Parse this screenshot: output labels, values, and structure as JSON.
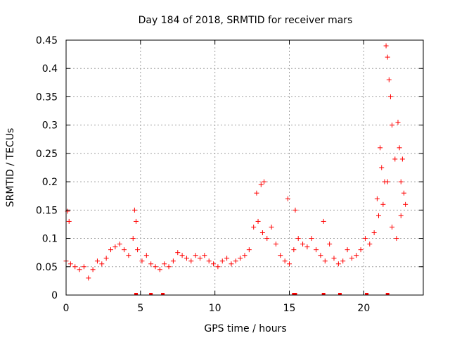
{
  "chart_data": {
    "type": "scatter",
    "title": "Day 184 of 2018, SRMTID for receiver mars",
    "xlabel": "GPS time / hours",
    "ylabel": "SRMTID / TECUs",
    "xlim": [
      0,
      24
    ],
    "ylim": [
      0,
      0.45
    ],
    "x_ticks": [
      "0",
      "5",
      "10",
      "15",
      "20"
    ],
    "y_ticks": [
      "0",
      "0.05",
      "0.1",
      "0.15",
      "0.2",
      "0.25",
      "0.3",
      "0.35",
      "0.4",
      "0.45"
    ],
    "grid": true,
    "marker": "+",
    "color": "#ff0000",
    "series": [
      {
        "name": "SRMTID",
        "x": [
          0.0,
          0.3,
          0.6,
          0.9,
          1.2,
          1.5,
          1.8,
          2.1,
          2.4,
          2.7,
          3.0,
          3.3,
          3.6,
          3.9,
          4.2,
          4.5,
          4.8,
          5.1,
          5.4,
          5.7,
          6.0,
          6.3,
          6.6,
          6.9,
          7.2,
          7.5,
          7.8,
          8.1,
          8.4,
          8.7,
          9.0,
          9.3,
          9.6,
          9.9,
          10.2,
          10.5,
          10.8,
          11.1,
          11.4,
          11.7,
          12.0,
          12.3,
          12.6,
          12.9,
          13.2,
          13.5,
          13.8,
          14.1,
          14.4,
          14.7,
          15.0,
          15.3,
          15.6,
          15.9,
          16.2,
          16.5,
          16.8,
          17.1,
          17.4,
          17.7,
          18.0,
          18.3,
          18.6,
          18.9,
          19.2,
          19.5,
          19.8,
          20.1,
          20.4,
          20.7,
          21.0,
          21.3,
          21.6,
          21.9,
          22.2,
          22.5,
          22.8,
          0.1,
          0.2,
          4.6,
          4.7,
          12.8,
          13.1,
          13.3,
          14.9,
          15.4,
          17.3,
          20.9,
          21.1,
          21.2,
          21.4,
          21.5,
          21.6,
          21.7,
          21.8,
          21.9,
          22.1,
          22.3,
          22.4,
          22.5,
          22.6,
          22.7
        ],
        "y": [
          0.06,
          0.055,
          0.05,
          0.045,
          0.05,
          0.03,
          0.045,
          0.06,
          0.055,
          0.065,
          0.08,
          0.085,
          0.09,
          0.08,
          0.07,
          0.1,
          0.08,
          0.06,
          0.07,
          0.055,
          0.05,
          0.045,
          0.055,
          0.05,
          0.06,
          0.075,
          0.07,
          0.065,
          0.06,
          0.07,
          0.065,
          0.07,
          0.06,
          0.055,
          0.05,
          0.06,
          0.065,
          0.055,
          0.06,
          0.065,
          0.07,
          0.08,
          0.12,
          0.13,
          0.11,
          0.1,
          0.12,
          0.09,
          0.07,
          0.06,
          0.055,
          0.08,
          0.1,
          0.09,
          0.085,
          0.1,
          0.08,
          0.07,
          0.06,
          0.09,
          0.065,
          0.055,
          0.06,
          0.08,
          0.065,
          0.07,
          0.08,
          0.1,
          0.09,
          0.11,
          0.14,
          0.16,
          0.2,
          0.12,
          0.1,
          0.14,
          0.16,
          0.148,
          0.13,
          0.15,
          0.13,
          0.18,
          0.195,
          0.2,
          0.17,
          0.15,
          0.13,
          0.17,
          0.26,
          0.225,
          0.2,
          0.44,
          0.42,
          0.38,
          0.35,
          0.3,
          0.24,
          0.305,
          0.26,
          0.2,
          0.24,
          0.18
        ],
        "zeros_x": [
          4.7,
          5.7,
          6.5,
          15.3,
          15.4,
          17.3,
          18.4,
          20.2,
          21.6
        ]
      }
    ]
  }
}
